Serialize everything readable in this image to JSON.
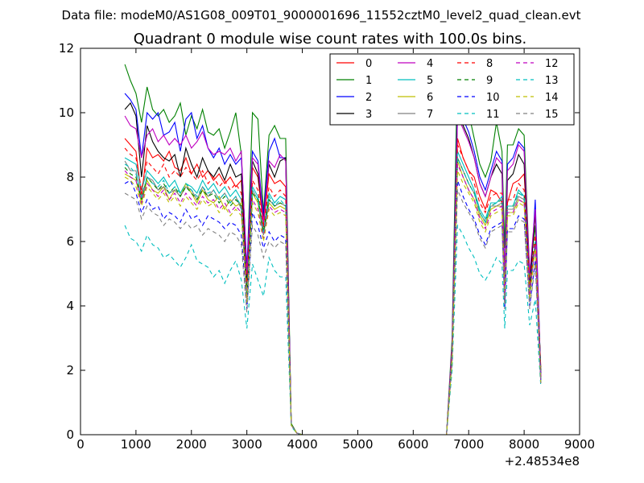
{
  "header": {
    "data_file": "Data file: modeM0/AS1G08_009T01_9000001696_11552cztM0_level2_quad_clean.evt"
  },
  "chart_data": {
    "type": "line",
    "title": "Quadrant 0 module wise count rates with 100.0s bins.",
    "xlabel": "",
    "ylabel": "",
    "x_offset_label": "+2.48534e8",
    "xlim": [
      0,
      9000
    ],
    "ylim": [
      0,
      12
    ],
    "x_ticks": [
      0,
      1000,
      2000,
      3000,
      4000,
      5000,
      6000,
      7000,
      8000,
      9000
    ],
    "y_ticks": [
      0,
      2,
      4,
      6,
      8,
      10,
      12
    ],
    "legend_location": "top-right",
    "x": [
      800,
      900,
      1000,
      1100,
      1200,
      1300,
      1400,
      1500,
      1600,
      1700,
      1800,
      1900,
      2000,
      2100,
      2200,
      2300,
      2400,
      2500,
      2600,
      2700,
      2800,
      2900,
      3000,
      3100,
      3200,
      3300,
      3400,
      3500,
      3600,
      3700,
      3800,
      3900,
      4000,
      5000,
      6000,
      6600,
      6700,
      6800,
      6900,
      7000,
      7100,
      7200,
      7300,
      7400,
      7500,
      7600,
      7650,
      7700,
      7800,
      7900,
      8000,
      8100,
      8200,
      8300
    ],
    "series": [
      {
        "name": "0",
        "color": "#ff0000",
        "dash": "solid",
        "values": [
          9.2,
          9.0,
          8.8,
          7.4,
          8.9,
          8.6,
          8.7,
          8.5,
          8.8,
          8.3,
          8.2,
          8.6,
          8.1,
          8.4,
          8.0,
          8.2,
          7.9,
          8.1,
          7.8,
          8.0,
          7.7,
          7.9,
          4.8,
          8.3,
          8.0,
          6.5,
          8.1,
          7.8,
          7.9,
          7.7,
          0.3,
          0.05,
          0,
          0,
          0,
          0,
          2.7,
          9.2,
          8.6,
          8.2,
          8.0,
          7.4,
          7.0,
          7.6,
          7.5,
          7.2,
          4.6,
          7.2,
          7.8,
          7.9,
          8.1,
          5.1,
          5.8,
          2.1
        ]
      },
      {
        "name": "1",
        "color": "#008000",
        "dash": "solid",
        "values": [
          11.5,
          11.0,
          10.6,
          9.7,
          10.8,
          10.1,
          9.9,
          10.1,
          9.7,
          9.9,
          10.3,
          9.3,
          9.9,
          9.5,
          10.1,
          9.4,
          9.3,
          9.5,
          8.9,
          9.4,
          10.0,
          8.7,
          5.0,
          10.0,
          9.8,
          6.9,
          9.3,
          9.6,
          9.2,
          9.2,
          0.35,
          0.05,
          0,
          0,
          0,
          0,
          3.0,
          11.6,
          10.2,
          10.0,
          9.2,
          8.4,
          8.0,
          8.5,
          9.7,
          8.8,
          5.8,
          9.0,
          9.0,
          9.5,
          9.3,
          5.0,
          6.5,
          2.0
        ]
      },
      {
        "name": "2",
        "color": "#0000ff",
        "dash": "solid",
        "values": [
          10.6,
          10.4,
          10.1,
          8.6,
          10.0,
          9.8,
          10.0,
          9.3,
          9.4,
          9.7,
          8.8,
          9.8,
          10.0,
          9.2,
          9.6,
          8.9,
          8.6,
          8.9,
          8.4,
          8.7,
          8.4,
          8.6,
          5.2,
          8.8,
          8.5,
          6.8,
          8.8,
          9.2,
          8.6,
          8.6,
          0.3,
          0.05,
          0,
          0,
          0,
          0,
          2.8,
          10.4,
          9.8,
          9.4,
          8.8,
          8.0,
          7.6,
          8.2,
          8.8,
          8.5,
          4.9,
          8.4,
          8.6,
          9.1,
          8.9,
          4.3,
          7.3,
          1.8
        ]
      },
      {
        "name": "3",
        "color": "#000000",
        "dash": "solid",
        "values": [
          10.1,
          10.3,
          9.9,
          8.0,
          9.6,
          9.1,
          8.8,
          8.6,
          8.5,
          8.7,
          8.0,
          8.9,
          8.4,
          8.0,
          8.6,
          8.2,
          8.0,
          8.3,
          7.9,
          8.4,
          8.0,
          8.1,
          4.6,
          8.5,
          8.1,
          6.7,
          8.4,
          8.0,
          8.5,
          8.6,
          0.3,
          0.05,
          0,
          0,
          0,
          0,
          2.7,
          10.0,
          9.6,
          9.2,
          8.6,
          7.8,
          7.4,
          8.0,
          8.4,
          8.1,
          4.6,
          7.9,
          8.1,
          8.7,
          8.4,
          4.6,
          6.9,
          1.9
        ]
      },
      {
        "name": "4",
        "color": "#bf00bf",
        "dash": "solid",
        "values": [
          9.9,
          9.6,
          9.5,
          8.6,
          9.3,
          9.5,
          9.1,
          9.3,
          9.0,
          9.2,
          9.0,
          9.3,
          8.9,
          9.1,
          9.4,
          8.9,
          8.7,
          8.8,
          8.7,
          8.9,
          8.5,
          8.8,
          5.0,
          8.6,
          8.4,
          6.6,
          8.5,
          8.3,
          8.7,
          8.5,
          0.3,
          0.05,
          0,
          0,
          0,
          0,
          2.8,
          9.9,
          9.5,
          9.1,
          8.6,
          7.8,
          7.4,
          8.0,
          8.6,
          8.4,
          4.8,
          8.2,
          8.4,
          9.0,
          8.8,
          5.0,
          7.0,
          1.8
        ]
      },
      {
        "name": "5",
        "color": "#00bfbf",
        "dash": "solid",
        "values": [
          8.6,
          8.5,
          8.4,
          7.6,
          8.2,
          8.0,
          7.8,
          8.0,
          7.7,
          7.9,
          7.5,
          7.8,
          7.7,
          7.5,
          7.9,
          7.6,
          7.8,
          7.5,
          7.7,
          7.4,
          7.6,
          7.3,
          4.4,
          7.7,
          7.4,
          6.3,
          7.5,
          7.2,
          7.4,
          7.3,
          0.3,
          0.05,
          0,
          0,
          0,
          0,
          2.5,
          8.8,
          8.4,
          8.0,
          7.6,
          7.0,
          6.7,
          7.2,
          7.2,
          7.4,
          4.3,
          7.1,
          7.1,
          7.6,
          7.4,
          4.4,
          6.0,
          1.7
        ]
      },
      {
        "name": "6",
        "color": "#bfbf00",
        "dash": "solid",
        "values": [
          8.1,
          8.0,
          7.9,
          7.2,
          7.9,
          7.6,
          7.5,
          7.7,
          7.3,
          7.6,
          7.4,
          7.8,
          7.5,
          7.2,
          7.6,
          7.3,
          7.2,
          7.4,
          7.0,
          7.3,
          7.1,
          7.2,
          4.3,
          7.5,
          7.2,
          6.2,
          7.2,
          7.0,
          7.1,
          7.0,
          0.3,
          0.05,
          0,
          0,
          0,
          0,
          2.4,
          8.5,
          8.0,
          7.6,
          7.3,
          6.8,
          6.5,
          7.0,
          7.1,
          7.1,
          4.2,
          6.9,
          6.9,
          7.3,
          7.2,
          4.3,
          5.9,
          1.6
        ]
      },
      {
        "name": "7",
        "color": "#808080",
        "dash": "solid",
        "values": [
          8.5,
          8.2,
          8.2,
          7.3,
          8.0,
          7.9,
          7.6,
          7.7,
          7.5,
          7.6,
          7.4,
          7.7,
          7.6,
          7.3,
          7.7,
          7.4,
          7.6,
          7.3,
          7.5,
          7.2,
          7.4,
          7.0,
          4.2,
          7.6,
          7.3,
          6.2,
          7.3,
          7.1,
          7.2,
          7.1,
          0.3,
          0.05,
          0,
          0,
          0,
          0,
          2.5,
          8.6,
          8.2,
          7.8,
          7.5,
          6.9,
          6.6,
          7.1,
          7.1,
          7.2,
          4.2,
          7.0,
          7.0,
          7.4,
          7.3,
          4.4,
          6.0,
          1.7
        ]
      },
      {
        "name": "8",
        "color": "#ff0000",
        "dash": "dashed",
        "values": [
          8.9,
          8.7,
          8.6,
          7.6,
          8.5,
          8.3,
          8.1,
          8.4,
          8.0,
          8.2,
          8.0,
          8.3,
          8.1,
          7.9,
          8.2,
          7.8,
          8.0,
          7.7,
          7.9,
          7.6,
          7.8,
          7.5,
          4.6,
          7.9,
          7.6,
          6.4,
          7.7,
          7.4,
          7.6,
          7.4,
          0.3,
          0.05,
          0,
          0,
          0,
          0,
          2.6,
          9.0,
          8.6,
          8.2,
          7.8,
          7.2,
          6.9,
          7.4,
          7.5,
          7.5,
          4.4,
          7.3,
          7.3,
          7.8,
          7.6,
          4.6,
          6.2,
          1.8
        ]
      },
      {
        "name": "9",
        "color": "#008000",
        "dash": "dashed",
        "values": [
          8.3,
          8.1,
          8.0,
          7.3,
          8.0,
          7.8,
          7.6,
          7.8,
          7.5,
          7.7,
          7.4,
          7.7,
          7.5,
          7.3,
          7.6,
          7.4,
          7.5,
          7.2,
          7.4,
          7.1,
          7.3,
          7.1,
          4.3,
          7.5,
          7.3,
          6.3,
          7.3,
          7.1,
          7.2,
          7.1,
          0.3,
          0.05,
          0,
          0,
          0,
          0,
          2.5,
          8.6,
          8.2,
          7.8,
          7.5,
          6.9,
          6.6,
          7.1,
          7.2,
          7.3,
          4.3,
          7.1,
          7.1,
          7.5,
          7.4,
          4.4,
          6.0,
          1.7
        ]
      },
      {
        "name": "10",
        "color": "#0000ff",
        "dash": "dashed",
        "values": [
          7.8,
          7.9,
          7.5,
          6.9,
          7.3,
          7.0,
          7.1,
          6.7,
          6.9,
          6.8,
          6.6,
          7.0,
          6.7,
          6.8,
          6.5,
          6.8,
          6.7,
          6.6,
          6.4,
          6.6,
          6.5,
          6.2,
          3.9,
          6.9,
          6.5,
          5.8,
          6.3,
          6.0,
          6.2,
          6.1,
          0.3,
          0.05,
          0,
          0,
          0,
          0,
          2.2,
          7.9,
          7.4,
          7.0,
          6.7,
          6.2,
          5.9,
          6.4,
          6.5,
          6.6,
          3.9,
          6.4,
          6.4,
          6.8,
          6.7,
          4.0,
          5.4,
          1.6
        ]
      },
      {
        "name": "11",
        "color": "#00bfbf",
        "dash": "dashed",
        "values": [
          8.4,
          8.3,
          8.1,
          7.4,
          8.0,
          7.8,
          7.7,
          7.9,
          7.5,
          7.7,
          7.5,
          7.8,
          7.6,
          7.4,
          7.7,
          7.5,
          7.6,
          7.3,
          7.5,
          7.2,
          7.4,
          7.1,
          4.3,
          7.6,
          7.3,
          6.3,
          7.4,
          7.1,
          7.3,
          7.1,
          0.3,
          0.05,
          0,
          0,
          0,
          0,
          2.5,
          8.6,
          8.2,
          7.8,
          7.5,
          6.9,
          6.6,
          7.1,
          7.2,
          7.3,
          4.3,
          7.1,
          7.1,
          7.5,
          7.4,
          4.4,
          6.0,
          1.7
        ]
      },
      {
        "name": "12",
        "color": "#bf00bf",
        "dash": "dashed",
        "values": [
          8.2,
          8.0,
          7.9,
          7.2,
          7.8,
          7.6,
          7.4,
          7.6,
          7.3,
          7.5,
          7.2,
          7.5,
          7.3,
          7.1,
          7.4,
          7.2,
          7.3,
          7.0,
          7.2,
          6.9,
          7.1,
          6.9,
          4.2,
          7.3,
          7.0,
          6.1,
          7.1,
          6.9,
          7.0,
          6.9,
          0.3,
          0.05,
          0,
          0,
          0,
          0,
          2.4,
          8.4,
          8.0,
          7.6,
          7.3,
          6.7,
          6.4,
          6.9,
          7.0,
          7.1,
          4.2,
          6.9,
          6.9,
          7.3,
          7.2,
          4.3,
          5.9,
          1.6
        ]
      },
      {
        "name": "13",
        "color": "#00bfbf",
        "dash": "dashed",
        "values": [
          6.5,
          6.1,
          6.0,
          5.7,
          6.2,
          5.9,
          5.8,
          5.5,
          5.6,
          5.4,
          5.2,
          5.5,
          5.9,
          5.4,
          5.3,
          5.2,
          4.9,
          5.1,
          4.7,
          5.1,
          5.4,
          4.8,
          3.3,
          5.3,
          4.8,
          4.3,
          5.5,
          5.1,
          4.9,
          4.9,
          0.25,
          0.05,
          0,
          0,
          0,
          0,
          2.0,
          6.5,
          6.2,
          5.8,
          5.5,
          5.0,
          4.8,
          5.1,
          5.5,
          5.3,
          3.3,
          5.1,
          5.1,
          5.4,
          5.3,
          3.4,
          4.2,
          1.5
        ]
      },
      {
        "name": "14",
        "color": "#bfbf00",
        "dash": "dashed",
        "values": [
          8.0,
          7.9,
          7.7,
          7.1,
          7.7,
          7.5,
          7.3,
          7.5,
          7.2,
          7.4,
          7.1,
          7.4,
          7.2,
          7.0,
          7.3,
          7.1,
          7.2,
          6.9,
          7.1,
          6.8,
          7.0,
          6.8,
          4.1,
          7.2,
          6.9,
          6.0,
          7.0,
          6.8,
          6.9,
          6.8,
          0.3,
          0.05,
          0,
          0,
          0,
          0,
          2.3,
          8.2,
          7.8,
          7.5,
          7.2,
          6.6,
          6.3,
          6.8,
          6.9,
          7.0,
          4.1,
          6.8,
          6.8,
          7.2,
          7.1,
          4.2,
          5.8,
          1.6
        ]
      },
      {
        "name": "15",
        "color": "#808080",
        "dash": "dashed",
        "values": [
          7.5,
          7.4,
          7.3,
          6.7,
          7.1,
          6.9,
          6.8,
          6.5,
          6.7,
          6.6,
          6.4,
          6.6,
          6.4,
          6.5,
          6.2,
          6.4,
          6.3,
          6.2,
          6.0,
          6.3,
          6.2,
          5.9,
          3.8,
          6.5,
          6.2,
          5.5,
          6.0,
          5.8,
          6.0,
          5.9,
          0.3,
          0.05,
          0,
          0,
          0,
          0,
          2.2,
          7.6,
          7.2,
          6.9,
          6.6,
          6.1,
          5.8,
          6.3,
          6.4,
          6.5,
          3.9,
          6.3,
          6.3,
          6.7,
          6.6,
          3.9,
          5.3,
          1.6
        ]
      }
    ]
  }
}
